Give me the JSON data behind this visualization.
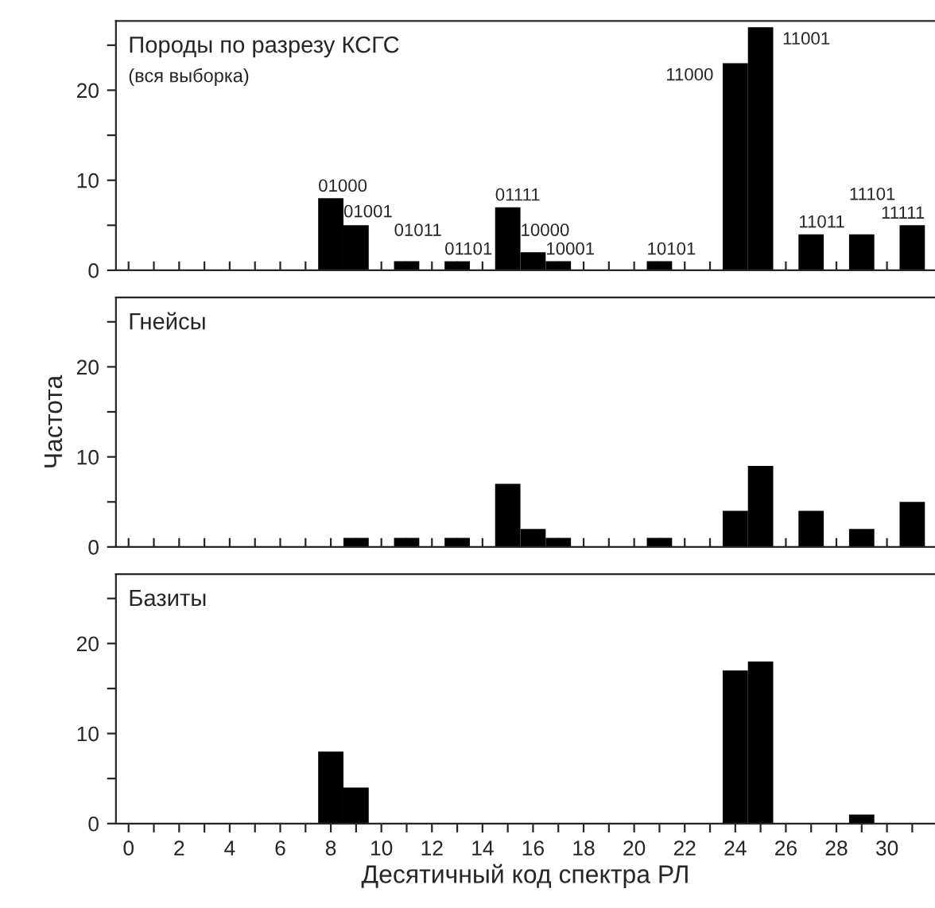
{
  "chart_data": [
    {
      "type": "histogram",
      "title": "Породы по разрезу КСГС",
      "subtitle": "(вся выборка)",
      "color": "#000000",
      "bins": [
        -0.5,
        0.5,
        1.5,
        2.5,
        3.5,
        4.5,
        5.5,
        6.5,
        7.5,
        8.5,
        9.5,
        10.5,
        11.5,
        12.5,
        13.5,
        14.5,
        15.5,
        16.5,
        17.5,
        18.5,
        19.5,
        20.5,
        21.5,
        22.5,
        23.5,
        24.5,
        25.5,
        26.5,
        27.5,
        28.5,
        29.5,
        30.5,
        31.5
      ],
      "values": [
        0,
        0,
        0,
        0,
        0,
        0,
        0,
        0,
        8,
        5,
        0,
        1,
        0,
        1,
        0,
        7,
        2,
        1,
        0,
        0,
        0,
        1,
        0,
        0,
        23,
        27,
        0,
        4,
        0,
        4,
        0,
        5
      ],
      "annotations": [
        {
          "text": "01000",
          "x": 8,
          "y": 8
        },
        {
          "text": "01001",
          "x": 9,
          "y": 5
        },
        {
          "text": "01011",
          "x": 11,
          "y": 1
        },
        {
          "text": "01101",
          "x": 13,
          "y": 1
        },
        {
          "text": "01111",
          "x": 15,
          "y": 7
        },
        {
          "text": "10000",
          "x": 16,
          "y": 2
        },
        {
          "text": "10001",
          "x": 17,
          "y": 1
        },
        {
          "text": "10101",
          "x": 21,
          "y": 1
        },
        {
          "text": "11000",
          "x": 24,
          "y": 23
        },
        {
          "text": "11001",
          "x": 25,
          "y": 27
        },
        {
          "text": "11011",
          "x": 27,
          "y": 4
        },
        {
          "text": "11101",
          "x": 29,
          "y": 4
        },
        {
          "text": "11111",
          "x": 31,
          "y": 5
        }
      ],
      "xlim": [
        -0.5,
        31.9
      ],
      "ylim": [
        0,
        27.7
      ],
      "xticks": [
        0,
        {
          "value": 1,
          "label": null
        },
        2,
        {
          "value": 3,
          "label": null
        },
        4,
        {
          "value": 5,
          "label": null
        },
        6,
        {
          "value": 7,
          "label": null
        },
        8,
        {
          "value": 9,
          "label": null
        },
        10,
        {
          "value": 11,
          "label": null
        },
        12,
        {
          "value": 13,
          "label": null
        },
        14,
        {
          "value": 15,
          "label": null
        },
        16,
        {
          "value": 17,
          "label": null
        },
        18,
        {
          "value": 19,
          "label": null
        },
        20,
        {
          "value": 21,
          "label": null
        },
        22,
        {
          "value": 23,
          "label": null
        },
        24,
        {
          "value": 25,
          "label": null
        },
        26,
        {
          "value": 27,
          "label": null
        },
        28,
        {
          "value": 29,
          "label": null
        },
        30,
        {
          "value": 31,
          "label": null
        }
      ],
      "yticks": [
        0,
        {
          "value": 5,
          "label": null
        },
        10,
        {
          "value": 15,
          "label": null
        },
        20,
        {
          "value": 25,
          "label": null
        }
      ],
      "tick_labels": "y",
      "grid": false,
      "legend": false
    },
    {
      "type": "histogram",
      "title": "Гнейсы",
      "ylabel": "Частота",
      "color": "#000000",
      "bins": [
        -0.5,
        0.5,
        1.5,
        2.5,
        3.5,
        4.5,
        5.5,
        6.5,
        7.5,
        8.5,
        9.5,
        10.5,
        11.5,
        12.5,
        13.5,
        14.5,
        15.5,
        16.5,
        17.5,
        18.5,
        19.5,
        20.5,
        21.5,
        22.5,
        23.5,
        24.5,
        25.5,
        26.5,
        27.5,
        28.5,
        29.5,
        30.5,
        31.5
      ],
      "values": [
        0,
        0,
        0,
        0,
        0,
        0,
        0,
        0,
        0,
        1,
        0,
        1,
        0,
        1,
        0,
        7,
        2,
        1,
        0,
        0,
        0,
        1,
        0,
        0,
        4,
        9,
        0,
        4,
        0,
        2,
        0,
        5
      ],
      "xlim": [
        -0.5,
        31.9
      ],
      "ylim": [
        0,
        27.7
      ],
      "xticks": [
        0,
        {
          "value": 1,
          "label": null
        },
        2,
        {
          "value": 3,
          "label": null
        },
        4,
        {
          "value": 5,
          "label": null
        },
        6,
        {
          "value": 7,
          "label": null
        },
        8,
        {
          "value": 9,
          "label": null
        },
        10,
        {
          "value": 11,
          "label": null
        },
        12,
        {
          "value": 13,
          "label": null
        },
        14,
        {
          "value": 15,
          "label": null
        },
        16,
        {
          "value": 17,
          "label": null
        },
        18,
        {
          "value": 19,
          "label": null
        },
        20,
        {
          "value": 21,
          "label": null
        },
        22,
        {
          "value": 23,
          "label": null
        },
        24,
        {
          "value": 25,
          "label": null
        },
        26,
        {
          "value": 27,
          "label": null
        },
        28,
        {
          "value": 29,
          "label": null
        },
        30,
        {
          "value": 31,
          "label": null
        }
      ],
      "yticks": [
        0,
        {
          "value": 5,
          "label": null
        },
        10,
        {
          "value": 15,
          "label": null
        },
        20,
        {
          "value": 25,
          "label": null
        }
      ],
      "tick_labels": "y",
      "grid": false,
      "legend": false
    },
    {
      "type": "histogram",
      "title": "Базиты",
      "xlabel": "Десятичный код спектра РЛ",
      "color": "#000000",
      "bins": [
        -0.5,
        0.5,
        1.5,
        2.5,
        3.5,
        4.5,
        5.5,
        6.5,
        7.5,
        8.5,
        9.5,
        10.5,
        11.5,
        12.5,
        13.5,
        14.5,
        15.5,
        16.5,
        17.5,
        18.5,
        19.5,
        20.5,
        21.5,
        22.5,
        23.5,
        24.5,
        25.5,
        26.5,
        27.5,
        28.5,
        29.5,
        30.5,
        31.5
      ],
      "values": [
        0,
        0,
        0,
        0,
        0,
        0,
        0,
        0,
        8,
        4,
        0,
        0,
        0,
        0,
        0,
        0,
        0,
        0,
        0,
        0,
        0,
        0,
        0,
        0,
        17,
        18,
        0,
        0,
        0,
        1,
        0,
        0
      ],
      "xlim": [
        -0.5,
        31.9
      ],
      "ylim": [
        0,
        27.7
      ],
      "xticks": [
        0,
        {
          "value": 1,
          "label": null
        },
        2,
        {
          "value": 3,
          "label": null
        },
        4,
        {
          "value": 5,
          "label": null
        },
        6,
        {
          "value": 7,
          "label": null
        },
        8,
        {
          "value": 9,
          "label": null
        },
        10,
        {
          "value": 11,
          "label": null
        },
        12,
        {
          "value": 13,
          "label": null
        },
        14,
        {
          "value": 15,
          "label": null
        },
        16,
        {
          "value": 17,
          "label": null
        },
        18,
        {
          "value": 19,
          "label": null
        },
        20,
        {
          "value": 21,
          "label": null
        },
        22,
        {
          "value": 23,
          "label": null
        },
        24,
        {
          "value": 25,
          "label": null
        },
        26,
        {
          "value": 27,
          "label": null
        },
        28,
        {
          "value": 29,
          "label": null
        },
        30,
        {
          "value": 31,
          "label": null
        }
      ],
      "yticks": [
        0,
        {
          "value": 5,
          "label": null
        },
        10,
        {
          "value": 15,
          "label": null
        },
        20,
        {
          "value": 25,
          "label": null
        }
      ],
      "grid": false,
      "legend": false
    }
  ]
}
